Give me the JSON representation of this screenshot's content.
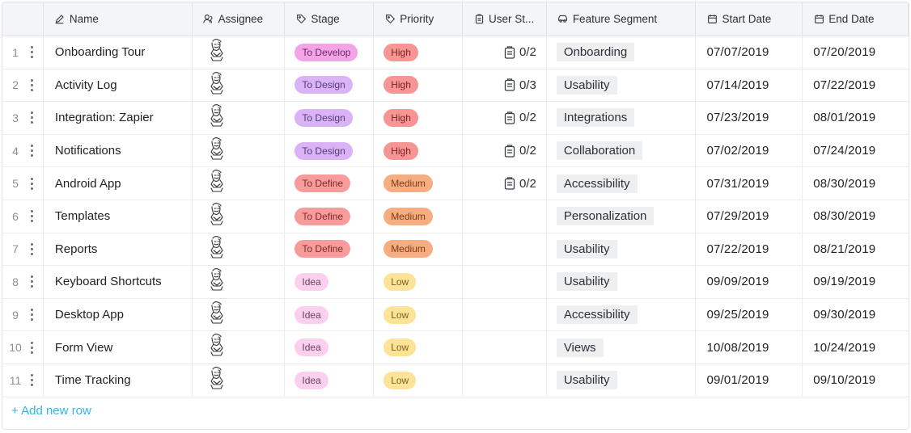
{
  "columns": {
    "name": "Name",
    "assignee": "Assignee",
    "stage": "Stage",
    "priority": "Priority",
    "user_stories": "User St...",
    "feature_segment": "Feature Segment",
    "start_date": "Start Date",
    "end_date": "End Date"
  },
  "colors": {
    "To Develop": {
      "bg": "#f3a3e6",
      "fg": "#6b2a68"
    },
    "To Design": {
      "bg": "#d9b3f5",
      "fg": "#553b79"
    },
    "To Define": {
      "bg": "#f79b9b",
      "fg": "#7d2b2b"
    },
    "Idea": {
      "bg": "#fbd0ee",
      "fg": "#6e4060"
    },
    "High": {
      "bg": "#f79595",
      "fg": "#7a2424"
    },
    "Medium": {
      "bg": "#f7ad82",
      "fg": "#7a3e1a"
    },
    "Low": {
      "bg": "#fde398",
      "fg": "#7a6420"
    },
    "accent": "#2fb5e8"
  },
  "rows": [
    {
      "index": "1",
      "name": "Onboarding Tour",
      "stage": "To Develop",
      "priority": "High",
      "user_stories": "0/2",
      "feature_segment": "Onboarding",
      "start_date": "07/07/2019",
      "end_date": "07/20/2019"
    },
    {
      "index": "2",
      "name": "Activity Log",
      "stage": "To Design",
      "priority": "High",
      "user_stories": "0/3",
      "feature_segment": "Usability",
      "start_date": "07/14/2019",
      "end_date": "07/22/2019"
    },
    {
      "index": "3",
      "name": "Integration: Zapier",
      "stage": "To Design",
      "priority": "High",
      "user_stories": "0/2",
      "feature_segment": "Integrations",
      "start_date": "07/23/2019",
      "end_date": "08/01/2019"
    },
    {
      "index": "4",
      "name": "Notifications",
      "stage": "To Design",
      "priority": "High",
      "user_stories": "0/2",
      "feature_segment": "Collaboration",
      "start_date": "07/02/2019",
      "end_date": "07/24/2019"
    },
    {
      "index": "5",
      "name": "Android App",
      "stage": "To Define",
      "priority": "Medium",
      "user_stories": "0/2",
      "feature_segment": "Accessibility",
      "start_date": "07/31/2019",
      "end_date": "08/30/2019"
    },
    {
      "index": "6",
      "name": "Templates",
      "stage": "To Define",
      "priority": "Medium",
      "user_stories": "",
      "feature_segment": "Personalization",
      "start_date": "07/29/2019",
      "end_date": "08/30/2019"
    },
    {
      "index": "7",
      "name": "Reports",
      "stage": "To Define",
      "priority": "Medium",
      "user_stories": "",
      "feature_segment": "Usability",
      "start_date": "07/22/2019",
      "end_date": "08/21/2019"
    },
    {
      "index": "8",
      "name": "Keyboard Shortcuts",
      "stage": "Idea",
      "priority": "Low",
      "user_stories": "",
      "feature_segment": "Usability",
      "start_date": "09/09/2019",
      "end_date": "09/19/2019"
    },
    {
      "index": "9",
      "name": "Desktop App",
      "stage": "Idea",
      "priority": "Low",
      "user_stories": "",
      "feature_segment": "Accessibility",
      "start_date": "09/25/2019",
      "end_date": "09/30/2019"
    },
    {
      "index": "10",
      "name": "Form View",
      "stage": "Idea",
      "priority": "Low",
      "user_stories": "",
      "feature_segment": "Views",
      "start_date": "10/08/2019",
      "end_date": "10/24/2019"
    },
    {
      "index": "11",
      "name": "Time Tracking",
      "stage": "Idea",
      "priority": "Low",
      "user_stories": "",
      "feature_segment": "Usability",
      "start_date": "09/01/2019",
      "end_date": "09/10/2019"
    }
  ],
  "add_row_label": "+ Add new row"
}
